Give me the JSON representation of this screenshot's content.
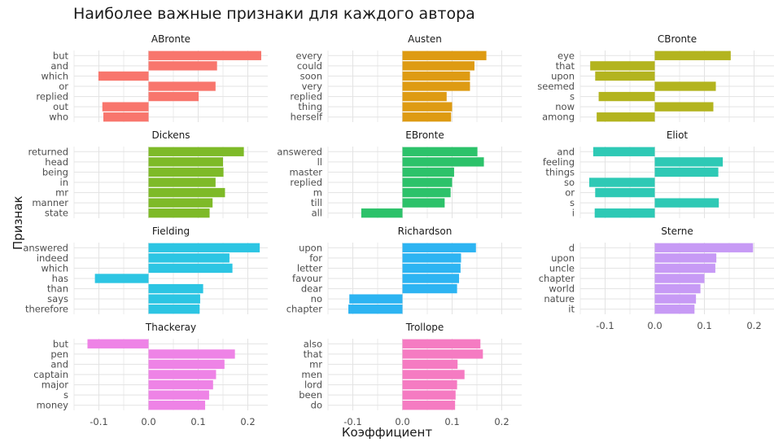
{
  "title": "Наиболее важные признаки для каждого автора",
  "xlabel": "Коэффициент",
  "ylabel": "Признак",
  "chart_data": {
    "type": "bar",
    "orientation": "horizontal",
    "title": "Наиболее важные признаки для каждого автора",
    "xlabel": "Коэффициент",
    "ylabel": "Признак",
    "xlim": [
      -0.15,
      0.24
    ],
    "xticks": [
      -0.1,
      0.0,
      0.1,
      0.2
    ],
    "xtick_labels": [
      "-0.1",
      "0.0",
      "0.1",
      "0.2"
    ],
    "grid": true,
    "facets": [
      {
        "name": "ABronte",
        "color": "#F8766D",
        "categories": [
          "but",
          "and",
          "which",
          "or",
          "replied",
          "out",
          "who"
        ],
        "values": [
          0.227,
          0.138,
          -0.101,
          0.135,
          0.101,
          -0.093,
          -0.091
        ]
      },
      {
        "name": "Austen",
        "color": "#DE9B13",
        "categories": [
          "every",
          "could",
          "soon",
          "very",
          "replied",
          "thing",
          "herself"
        ],
        "values": [
          0.169,
          0.145,
          0.136,
          0.136,
          0.089,
          0.1,
          0.098
        ]
      },
      {
        "name": "CBronte",
        "color": "#B3B41F",
        "categories": [
          "eye",
          "that",
          "upon",
          "seemed",
          "s",
          "now",
          "among"
        ],
        "values": [
          0.153,
          -0.13,
          -0.12,
          0.123,
          -0.113,
          0.118,
          -0.117
        ]
      },
      {
        "name": "Dickens",
        "color": "#7EBA28",
        "categories": [
          "returned",
          "head",
          "being",
          "in",
          "mr",
          "manner",
          "state"
        ],
        "values": [
          0.192,
          0.15,
          0.151,
          0.135,
          0.154,
          0.129,
          0.123
        ]
      },
      {
        "name": "EBronte",
        "color": "#2CC26A",
        "categories": [
          "answered",
          "ll",
          "master",
          "replied",
          "m",
          "till",
          "all"
        ],
        "values": [
          0.151,
          0.164,
          0.104,
          0.1,
          0.097,
          0.085,
          -0.083
        ]
      },
      {
        "name": "Eliot",
        "color": "#2EC9B5",
        "categories": [
          "and",
          "feeling",
          "things",
          "so",
          "or",
          "s",
          "i"
        ],
        "values": [
          -0.124,
          0.137,
          0.128,
          -0.132,
          -0.12,
          0.129,
          -0.121
        ]
      },
      {
        "name": "Fielding",
        "color": "#2CC5E3",
        "categories": [
          "answered",
          "indeed",
          "which",
          "has",
          "than",
          "says",
          "therefore"
        ],
        "values": [
          0.224,
          0.163,
          0.169,
          -0.108,
          0.11,
          0.104,
          0.103
        ]
      },
      {
        "name": "Richardson",
        "color": "#2DB4F2",
        "categories": [
          "upon",
          "for",
          "letter",
          "favour",
          "dear",
          "no",
          "chapter"
        ],
        "values": [
          0.148,
          0.118,
          0.117,
          0.114,
          0.11,
          -0.107,
          -0.109
        ]
      },
      {
        "name": "Sterne",
        "color": "#C79AF5",
        "categories": [
          "d",
          "upon",
          "uncle",
          "chapter",
          "world",
          "nature",
          "it"
        ],
        "values": [
          0.198,
          0.124,
          0.122,
          0.1,
          0.092,
          0.083,
          0.08
        ]
      },
      {
        "name": "Thackeray",
        "color": "#EE83E6",
        "categories": [
          "but",
          "pen",
          "and",
          "captain",
          "major",
          "s",
          "money"
        ],
        "values": [
          -0.123,
          0.174,
          0.153,
          0.136,
          0.13,
          0.122,
          0.114
        ]
      },
      {
        "name": "Trollope",
        "color": "#F57BC2",
        "categories": [
          "also",
          "that",
          "mr",
          "men",
          "lord",
          "been",
          "do"
        ],
        "values": [
          0.157,
          0.162,
          0.111,
          0.125,
          0.11,
          0.107,
          0.106
        ]
      }
    ]
  }
}
